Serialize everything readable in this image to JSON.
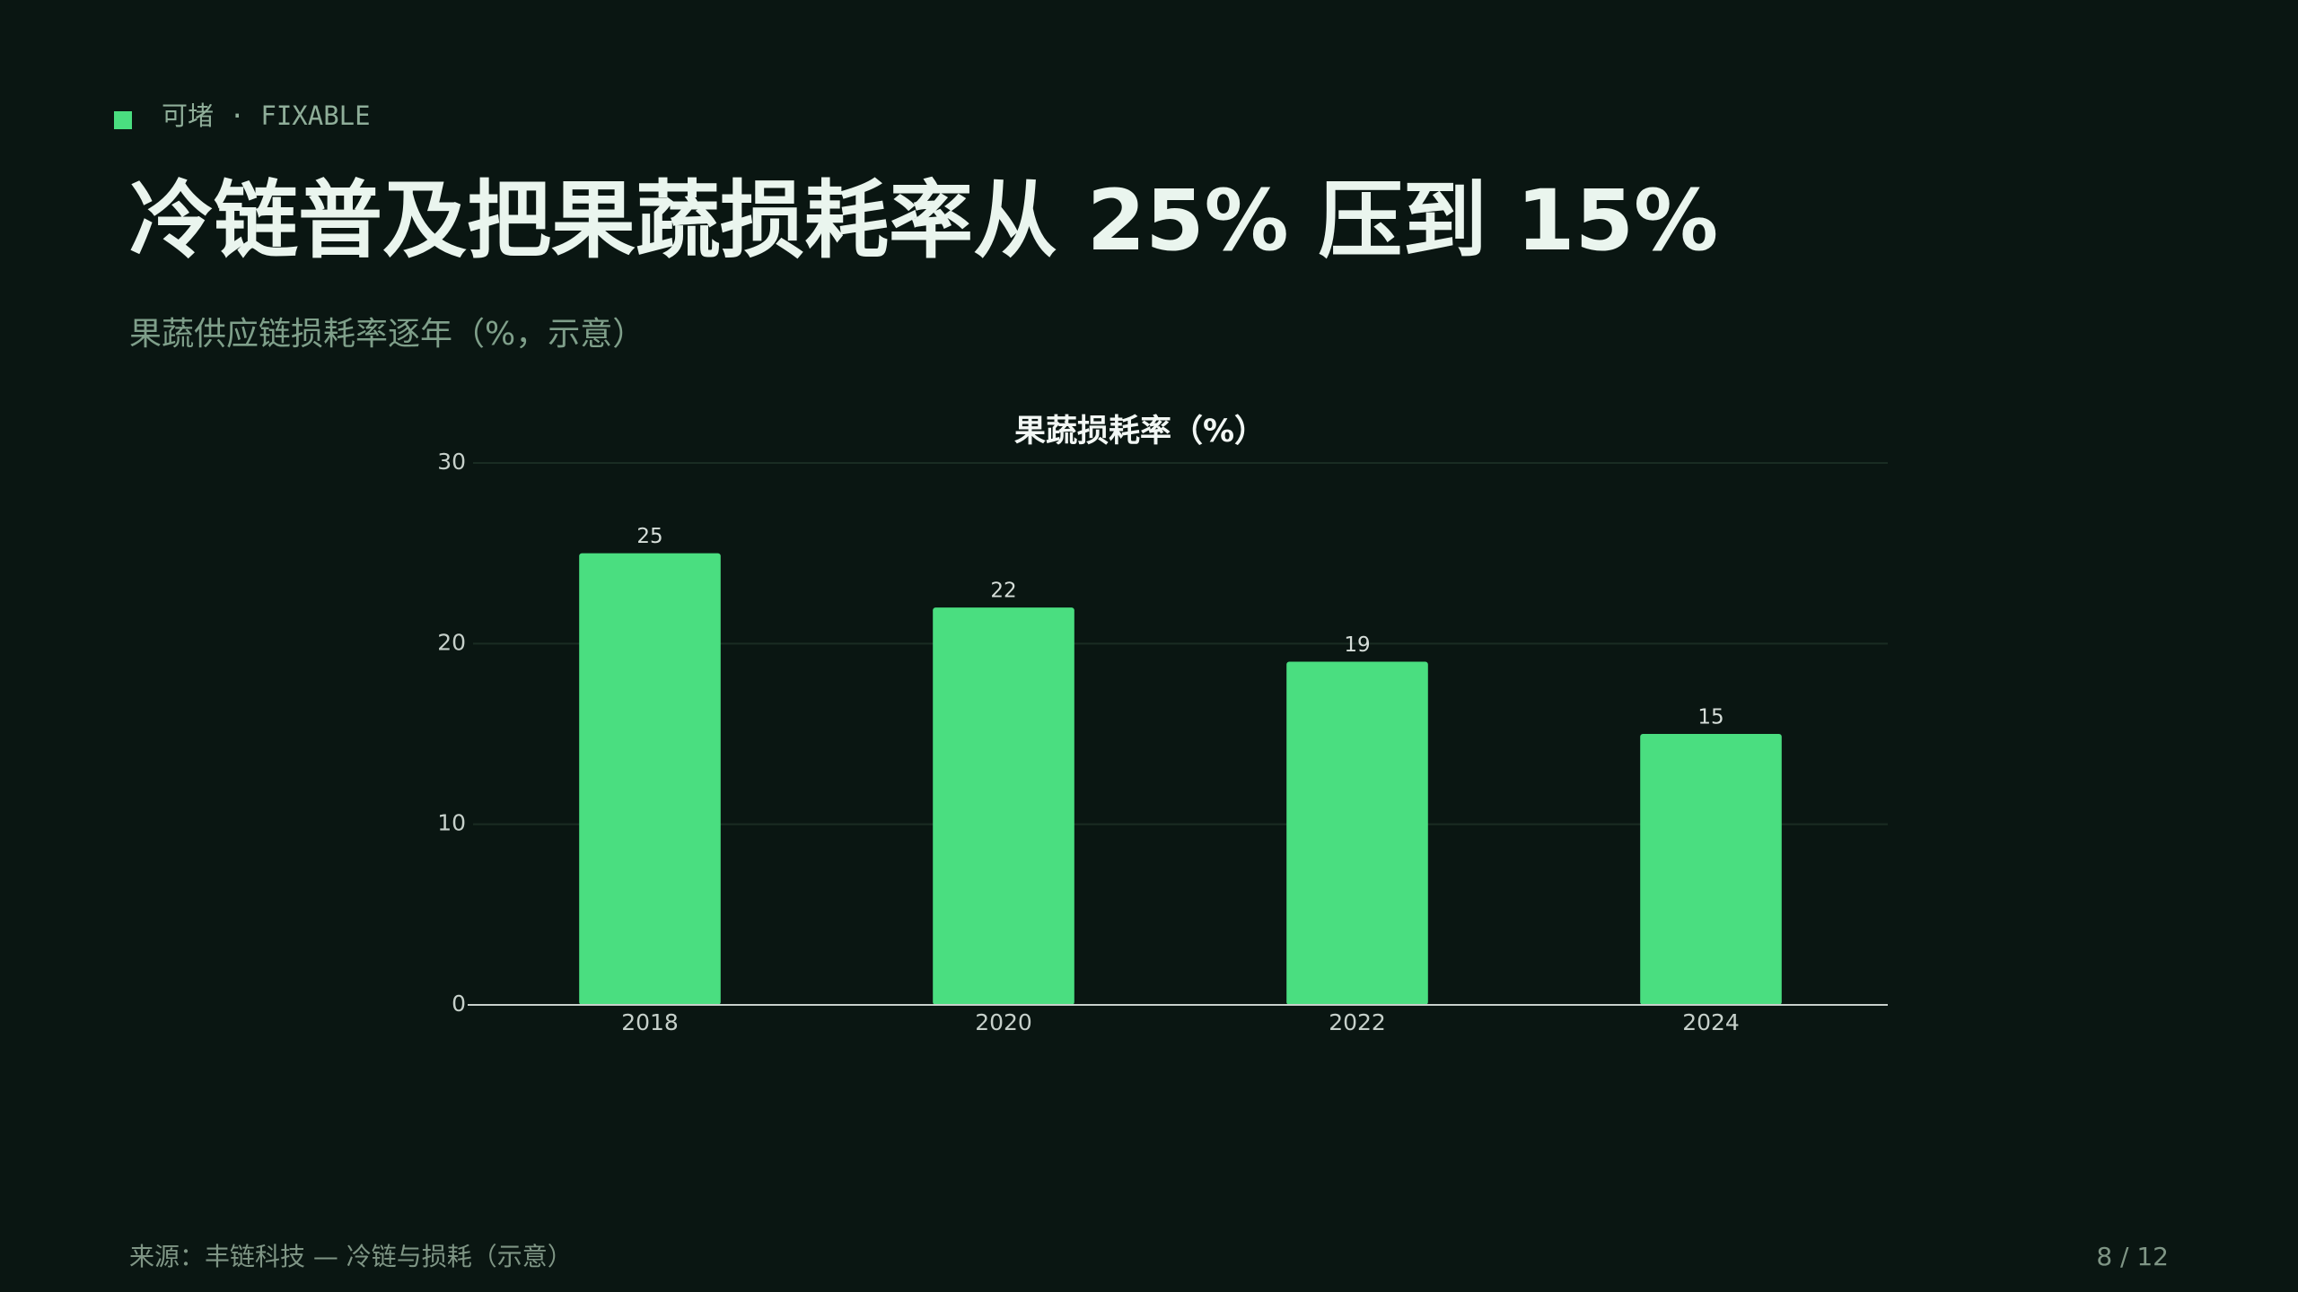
{
  "header": {
    "tag": "可堵 · FIXABLE",
    "title": "冷链普及把果蔬损耗率从 25% 压到 15%",
    "subtitle": "果蔬供应链损耗率逐年（%，示意）"
  },
  "chart_data": {
    "type": "bar",
    "title": "果蔬损耗率（%）",
    "categories": [
      "2018",
      "2020",
      "2022",
      "2024"
    ],
    "values": [
      25,
      22,
      19,
      15
    ],
    "color": "#4ade80",
    "ylim": [
      0,
      30
    ],
    "yticks": [
      0,
      10,
      20,
      30
    ],
    "grid": true
  },
  "footer": {
    "source": "来源：丰链科技 — 冷链与损耗（示意）",
    "page": "8 / 12"
  }
}
